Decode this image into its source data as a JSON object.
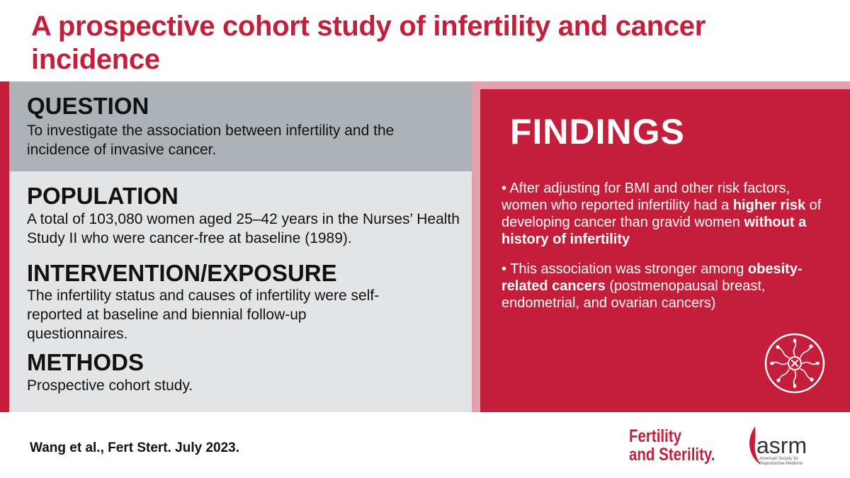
{
  "title": "A prospective cohort study of infertility and cancer incidence",
  "sections": {
    "question": {
      "heading": "QUESTION",
      "text": "To investigate the association between infertility and the incidence of invasive cancer."
    },
    "population": {
      "heading": "POPULATION",
      "text": "A total of 103,080 women aged 25–42 years in the Nurses’ Health Study II who were cancer-free at baseline (1989)."
    },
    "intervention": {
      "heading": "INTERVENTION/EXPOSURE",
      "text": "The infertility status and causes of infertility were self-reported at baseline and biennial follow-up questionnaires."
    },
    "methods": {
      "heading": "METHODS",
      "text": "Prospective cohort study."
    }
  },
  "findings": {
    "heading": "FINDINGS",
    "bullet1": {
      "prefix": "• After adjusting for BMI and other risk factors, women who reported infertility had a ",
      "bold1": "higher risk",
      "mid": " of developing cancer than gravid women ",
      "bold2": "without a history of infertility"
    },
    "bullet2": {
      "prefix": "• This association was stronger among ",
      "bold": "obesity-related cancers",
      "suffix": " (postmenopausal breast, endometrial, and ovarian cancers)"
    },
    "icon": "sperm-egg-icon"
  },
  "citation": "Wang et al., Fert Stert. July 2023.",
  "logos": {
    "journal_line1": "Fertility",
    "journal_line2": "and Sterility.",
    "society": "asrm",
    "society_sub1": "American Society for",
    "society_sub2": "Reproductive Medicine"
  },
  "colors": {
    "brand_red": "#c41e3a",
    "question_bg": "#adb2b6",
    "population_bg": "#e2e4e6",
    "findings_border": "#e3a1ac"
  }
}
